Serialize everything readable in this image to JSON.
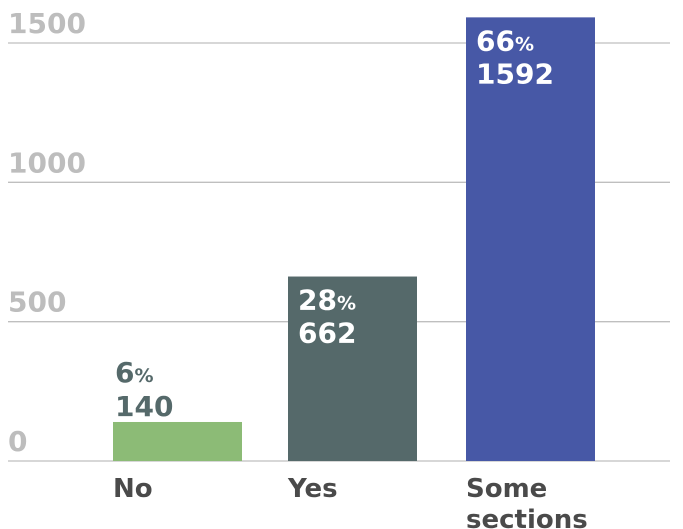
{
  "chart_data": {
    "type": "bar",
    "categories": [
      "No",
      "Yes",
      "Some sections"
    ],
    "category_lines": [
      [
        "No"
      ],
      [
        "Yes"
      ],
      [
        "Some",
        "sections"
      ]
    ],
    "values": [
      140,
      662,
      1592
    ],
    "percent_labels": [
      "6",
      "28",
      "66"
    ],
    "percent_sign": "%",
    "value_labels": [
      "140",
      "662",
      "1592"
    ],
    "colors": [
      "#8cbb76",
      "#55696a",
      "#4758a6"
    ],
    "label_colors": [
      "#55696a",
      "#ffffff",
      "#ffffff"
    ],
    "label_positions": [
      "above",
      "inside",
      "inside"
    ],
    "yticks": [
      0,
      500,
      1000,
      1500
    ],
    "ytick_labels": [
      "0",
      "500",
      "1000",
      "1500"
    ],
    "ylim": [
      0,
      1500
    ],
    "grid": true,
    "title": "",
    "xlabel": "",
    "ylabel": ""
  }
}
